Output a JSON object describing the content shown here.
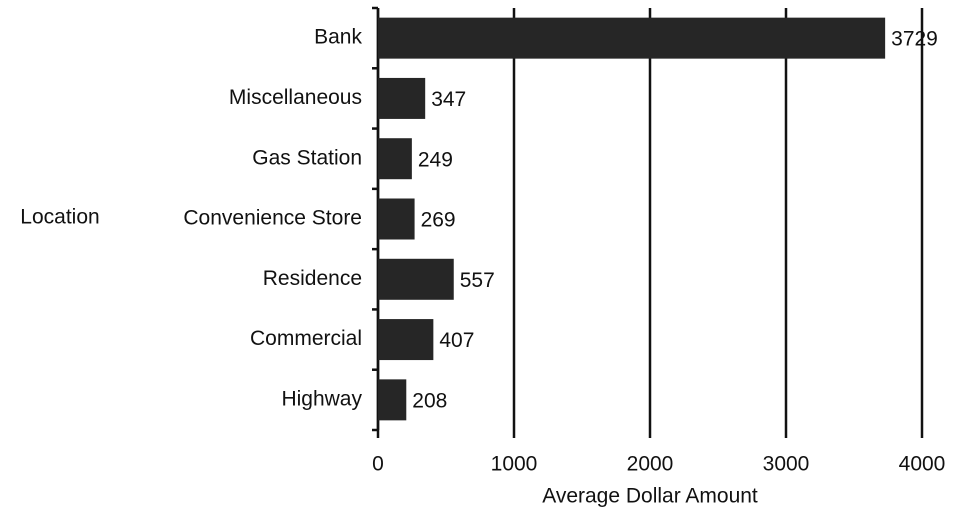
{
  "chart_data": {
    "type": "barh",
    "categories": [
      "Bank",
      "Miscellaneous",
      "Gas Station",
      "Convenience Store",
      "Residence",
      "Commercial",
      "Highway"
    ],
    "values": [
      3729,
      347,
      249,
      269,
      557,
      407,
      208
    ],
    "color": "#262626",
    "x_label": "Average Dollar Amount",
    "y_label": "Location",
    "xlim": [
      0,
      4000
    ],
    "xticks": [
      0,
      1000,
      2000,
      3000,
      4000
    ],
    "grid": true
  }
}
